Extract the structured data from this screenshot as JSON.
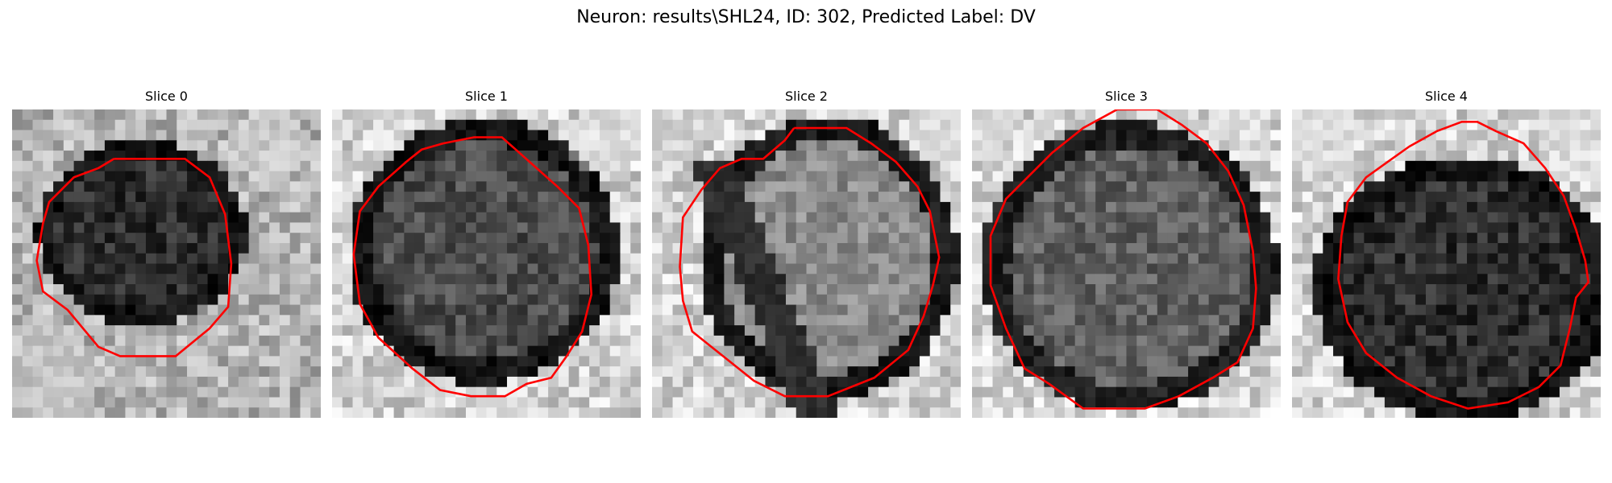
{
  "figure": {
    "title": "Neuron: results\\SHL24, ID: 302, Predicted Label: DV"
  },
  "panels": [
    {
      "title": "Slice 0"
    },
    {
      "title": "Slice 1"
    },
    {
      "title": "Slice 2"
    },
    {
      "title": "Slice 3"
    },
    {
      "title": "Slice 4"
    }
  ],
  "colors": {
    "outline": "#ff0000",
    "background": "#ffffff",
    "image_colormap": "grayscale"
  }
}
